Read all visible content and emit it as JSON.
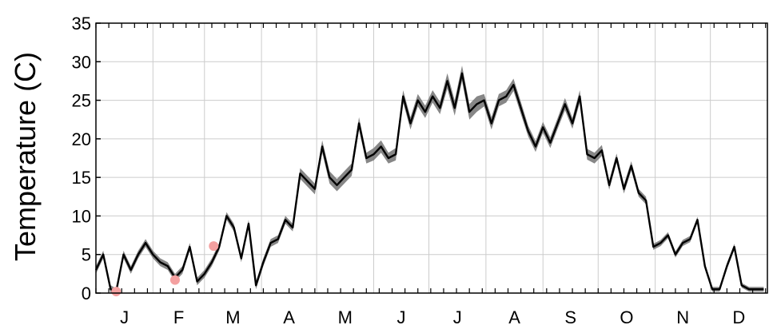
{
  "chart_data": {
    "type": "line",
    "title": "",
    "xlabel": "",
    "ylabel": "Temperature (C)",
    "ylim": [
      0,
      35
    ],
    "yticks": [
      0,
      5,
      10,
      15,
      20,
      25,
      30,
      35
    ],
    "ytick_labels": [
      "0",
      "5",
      "10",
      "15",
      "20",
      "25",
      "30",
      "35"
    ],
    "x_units": "day of year",
    "xlim": [
      1,
      366
    ],
    "x_month_labels": [
      "J",
      "F",
      "M",
      "A",
      "M",
      "J",
      "J",
      "A",
      "S",
      "O",
      "N",
      "D"
    ],
    "grid": true,
    "series": [
      {
        "role": "mean-line",
        "color": "#000000",
        "x": [
          1,
          5,
          9,
          12,
          16,
          20,
          24,
          28,
          32,
          36,
          40,
          44,
          48,
          52,
          56,
          60,
          64,
          68,
          72,
          76,
          80,
          84,
          88,
          92,
          96,
          100,
          104,
          108,
          112,
          116,
          120,
          124,
          128,
          132,
          136,
          140,
          144,
          148,
          152,
          156,
          160,
          164,
          168,
          172,
          176,
          180,
          184,
          188,
          192,
          196,
          200,
          204,
          208,
          212,
          216,
          220,
          224,
          228,
          232,
          236,
          240,
          244,
          248,
          252,
          256,
          260,
          264,
          268,
          272,
          276,
          280,
          284,
          288,
          292,
          296,
          300,
          304,
          308,
          312,
          316,
          320,
          324,
          328,
          332,
          336,
          340,
          344,
          348,
          352,
          356,
          360,
          364
        ],
        "y": [
          3.0,
          5.0,
          0.5,
          0.2,
          5.0,
          3.0,
          5.0,
          6.5,
          5.0,
          4.0,
          3.5,
          2.0,
          3.0,
          6.0,
          1.5,
          2.5,
          4.0,
          6.0,
          10.0,
          8.5,
          4.5,
          9.0,
          1.0,
          4.0,
          6.5,
          7.0,
          9.5,
          8.5,
          15.5,
          14.5,
          13.5,
          19.0,
          15.0,
          14.0,
          15.0,
          16.0,
          22.0,
          17.5,
          18.0,
          19.0,
          17.5,
          18.0,
          25.5,
          22.0,
          25.0,
          23.5,
          25.5,
          24.0,
          27.5,
          24.0,
          28.5,
          23.5,
          24.5,
          25.0,
          22.0,
          25.0,
          25.5,
          27.0,
          24.0,
          21.0,
          19.0,
          21.5,
          19.5,
          22.0,
          24.5,
          22.0,
          25.5,
          18.0,
          17.5,
          18.5,
          14.0,
          17.5,
          13.5,
          16.5,
          13.0,
          12.0,
          6.0,
          6.5,
          7.5,
          5.0,
          6.5,
          7.0,
          9.5,
          3.5,
          0.5,
          0.5,
          3.5,
          6.0,
          1.0,
          0.5,
          0.5,
          0.5
        ]
      },
      {
        "role": "range-band",
        "color": "#7a7a7a",
        "x": [
          1,
          5,
          9,
          12,
          16,
          20,
          24,
          28,
          32,
          36,
          40,
          44,
          48,
          52,
          56,
          60,
          64,
          68,
          72,
          76,
          80,
          84,
          88,
          92,
          96,
          100,
          104,
          108,
          112,
          116,
          120,
          124,
          128,
          132,
          136,
          140,
          144,
          148,
          152,
          156,
          160,
          164,
          168,
          172,
          176,
          180,
          184,
          188,
          192,
          196,
          200,
          204,
          208,
          212,
          216,
          220,
          224,
          228,
          232,
          236,
          240,
          244,
          248,
          252,
          256,
          260,
          264,
          268,
          272,
          276,
          280,
          284,
          288,
          292,
          296,
          300,
          304,
          308,
          312,
          316,
          320,
          324,
          328,
          332,
          336,
          340,
          344,
          348,
          352,
          356,
          360,
          364
        ],
        "lower": [
          2.5,
          4.5,
          0.0,
          0.0,
          4.5,
          2.5,
          4.5,
          6.0,
          4.5,
          3.5,
          3.0,
          1.5,
          2.5,
          5.5,
          1.0,
          2.0,
          3.5,
          5.5,
          9.5,
          8.0,
          4.0,
          8.5,
          0.5,
          3.5,
          6.0,
          6.5,
          9.0,
          8.0,
          14.8,
          13.8,
          12.8,
          18.2,
          14.2,
          13.2,
          14.2,
          15.2,
          21.2,
          16.8,
          17.2,
          18.2,
          16.8,
          17.2,
          24.7,
          21.2,
          24.2,
          22.7,
          24.7,
          23.2,
          26.5,
          23.0,
          27.5,
          22.5,
          23.5,
          24.2,
          21.2,
          24.2,
          24.7,
          26.2,
          23.2,
          20.3,
          18.3,
          20.8,
          18.8,
          21.3,
          23.7,
          21.3,
          24.7,
          17.3,
          16.8,
          17.8,
          13.4,
          16.9,
          12.9,
          15.9,
          12.5,
          11.5,
          5.6,
          6.1,
          7.1,
          4.6,
          6.1,
          6.6,
          9.1,
          3.1,
          0.2,
          0.2,
          3.1,
          5.6,
          0.7,
          0.2,
          0.2,
          0.2
        ],
        "upper": [
          3.5,
          5.5,
          1.0,
          0.6,
          5.5,
          3.5,
          5.5,
          7.0,
          5.5,
          4.5,
          4.0,
          2.5,
          3.5,
          6.5,
          2.0,
          3.0,
          4.5,
          6.5,
          10.5,
          9.0,
          5.0,
          9.5,
          1.5,
          4.5,
          7.0,
          7.5,
          10.0,
          9.0,
          16.2,
          15.2,
          14.2,
          19.8,
          15.8,
          14.8,
          15.8,
          16.8,
          22.8,
          18.2,
          18.8,
          19.8,
          18.2,
          18.8,
          26.3,
          22.8,
          25.8,
          24.3,
          26.3,
          24.8,
          28.5,
          25.0,
          29.5,
          24.5,
          25.5,
          25.8,
          22.8,
          25.8,
          26.3,
          27.8,
          24.8,
          21.7,
          19.7,
          22.2,
          20.2,
          22.7,
          25.3,
          22.7,
          26.3,
          18.7,
          18.2,
          19.2,
          14.6,
          18.1,
          14.1,
          17.1,
          13.5,
          12.5,
          6.4,
          6.9,
          7.9,
          5.4,
          6.9,
          7.4,
          9.9,
          3.9,
          0.8,
          0.8,
          3.9,
          6.4,
          1.3,
          0.8,
          0.8,
          0.8
        ]
      },
      {
        "role": "highlight-points",
        "type": "scatter",
        "color": "#f4a0a0",
        "x": [
          12,
          44,
          65
        ],
        "y": [
          0.2,
          1.7,
          6.1
        ]
      }
    ]
  }
}
